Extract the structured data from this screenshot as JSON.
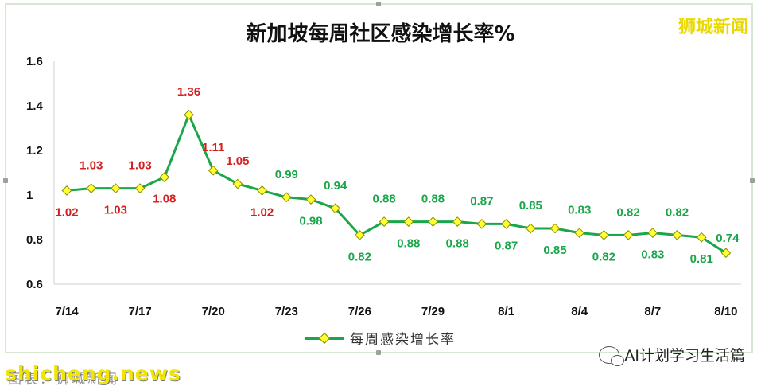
{
  "brand": "狮城新闻",
  "watermark": "shicheng.news",
  "source_caption": "图表：狮城新闻",
  "wechat_account": "AI计划学习生活篇",
  "chart_data": {
    "type": "line",
    "title": "新加坡每周社区感染增长率%",
    "categories": [
      "7/14",
      "7/15",
      "7/16",
      "7/17",
      "7/18",
      "7/19",
      "7/20",
      "7/21",
      "7/22",
      "7/23",
      "7/24",
      "7/25",
      "7/26",
      "7/27",
      "7/28",
      "7/29",
      "7/30",
      "7/31",
      "8/1",
      "8/2",
      "8/3",
      "8/4",
      "8/5",
      "8/6",
      "8/7",
      "8/8",
      "8/9",
      "8/10"
    ],
    "x_tick_labels": [
      "7/14",
      "7/17",
      "7/20",
      "7/23",
      "7/26",
      "7/29",
      "8/1",
      "8/4",
      "8/7",
      "8/10"
    ],
    "series": [
      {
        "name": "每周感染增长率",
        "values": [
          1.02,
          1.03,
          1.03,
          1.03,
          1.08,
          1.36,
          1.11,
          1.05,
          1.02,
          0.99,
          0.98,
          0.94,
          0.82,
          0.88,
          0.88,
          0.88,
          0.88,
          0.87,
          0.87,
          0.85,
          0.85,
          0.83,
          0.82,
          0.82,
          0.83,
          0.82,
          0.81,
          0.74
        ],
        "data_labels": [
          "1.02",
          "1.03",
          "1.03",
          "1.03",
          "1.08",
          "1.36",
          "1.11",
          "1.05",
          "1.02",
          "0.99",
          "0.98",
          "0.94",
          "0.82",
          "0.88",
          "0.88",
          "0.88",
          "0.88",
          "0.87",
          "0.87",
          "0.85",
          "0.85",
          "0.83",
          "0.82",
          "0.82",
          "0.83",
          "0.82",
          "0.81",
          "0.74"
        ]
      }
    ],
    "ylim": [
      0.6,
      1.6
    ],
    "y_ticks": [
      "0.6",
      "0.8",
      "1",
      "1.2",
      "1.4",
      "1.6"
    ],
    "xlabel": "",
    "ylabel": "",
    "grid": false,
    "legend": "bottom",
    "colors": {
      "line": "#1aa64a",
      "marker_fill": "#ffff33",
      "marker_stroke": "#8c8c00",
      "label_up": "#d42020",
      "label_down": "#1aa64a"
    }
  }
}
